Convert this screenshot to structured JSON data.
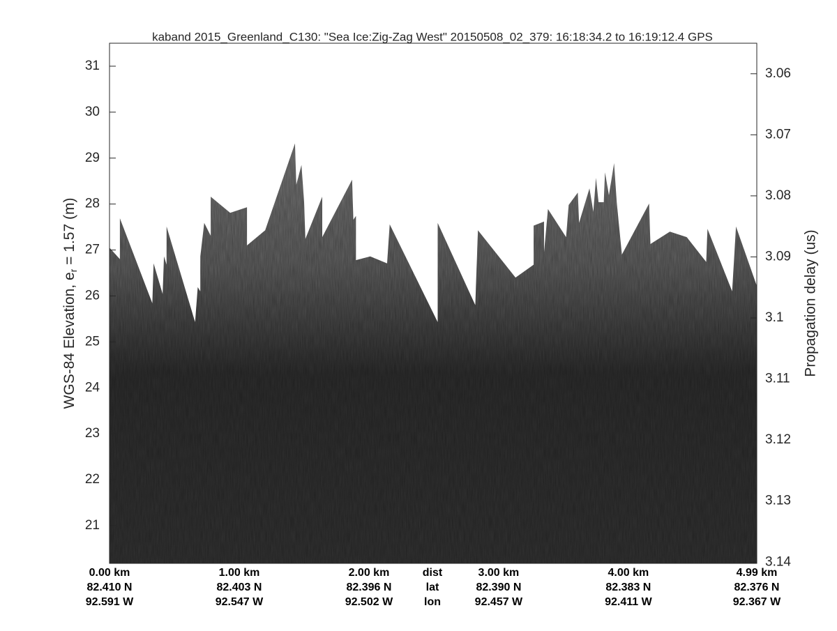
{
  "chart_data": {
    "type": "echogram",
    "title": "kaband 2015_Greenland_C130: \"Sea Ice:Zig-Zag West\"  20150508_02_379: 16:18:34.2 to 16:19:12.4 GPS",
    "ylabel_parts": [
      "WGS-84 Elevation, e",
      "r",
      " = 1.57 (m)"
    ],
    "y2label": "Propagation delay (us)",
    "xlim": [
      0,
      4.99
    ],
    "ylim": [
      20.18,
      31.5
    ],
    "y2lim": [
      3.055,
      3.1402
    ],
    "yticks": [
      21,
      22,
      23,
      24,
      25,
      26,
      27,
      28,
      29,
      30,
      31
    ],
    "y2ticks": [
      3.06,
      3.07,
      3.08,
      3.09,
      3.1,
      3.11,
      3.12,
      3.13,
      3.14
    ],
    "xticks": [
      {
        "value": 0,
        "label": "0.00 km"
      },
      {
        "value": 1,
        "label": "1.00 km"
      },
      {
        "value": 2,
        "label": "2.00 km"
      },
      {
        "value": 3,
        "label": "3.00 km"
      },
      {
        "value": 4,
        "label": "4.00 km"
      },
      {
        "value": 4.99,
        "label": "4.99 km"
      }
    ],
    "lat_labels": [
      "82.410 N",
      "82.403 N",
      "82.396 N",
      "82.390 N",
      "82.383 N",
      "82.376 N"
    ],
    "lon_labels": [
      "92.591 W",
      "92.547 W",
      "92.502 W",
      "92.457 W",
      "92.411 W",
      "92.367 W"
    ],
    "row_names": [
      "dist",
      "lat",
      "lon"
    ],
    "surface": {
      "x": [
        0.0,
        0.08,
        0.08,
        0.33,
        0.34,
        0.41,
        0.42,
        0.44,
        0.44,
        0.66,
        0.68,
        0.7,
        0.7,
        0.73,
        0.78,
        0.78,
        0.93,
        1.06,
        1.06,
        1.2,
        1.43,
        1.44,
        1.48,
        1.5,
        1.51,
        1.64,
        1.64,
        1.87,
        1.88,
        1.9,
        1.9,
        2.01,
        2.14,
        2.16,
        2.53,
        2.53,
        2.82,
        2.84,
        3.13,
        3.27,
        3.27,
        3.35,
        3.35,
        3.38,
        3.52,
        3.54,
        3.61,
        3.62,
        3.7,
        3.73,
        3.75,
        3.77,
        3.81,
        3.82,
        3.85,
        3.89,
        3.91,
        3.95,
        4.16,
        4.17,
        4.32,
        4.45,
        4.6,
        4.61,
        4.8,
        4.83,
        4.99
      ],
      "values": [
        27.05,
        26.8,
        27.69,
        25.84,
        26.71,
        26.04,
        26.86,
        26.68,
        27.51,
        25.43,
        26.19,
        26.1,
        26.86,
        27.59,
        27.31,
        28.16,
        27.81,
        27.93,
        27.1,
        27.43,
        29.32,
        28.42,
        28.85,
        28.04,
        27.24,
        28.16,
        27.28,
        28.53,
        27.66,
        27.74,
        26.78,
        26.86,
        26.71,
        27.56,
        25.43,
        27.59,
        25.8,
        27.43,
        26.4,
        26.68,
        27.53,
        27.62,
        26.95,
        27.89,
        27.28,
        27.98,
        28.25,
        27.59,
        28.34,
        27.83,
        28.57,
        28.04,
        28.04,
        28.69,
        28.19,
        28.89,
        28.04,
        26.9,
        28.01,
        27.13,
        27.4,
        27.28,
        26.74,
        27.46,
        26.1,
        27.51,
        26.22
      ]
    }
  }
}
